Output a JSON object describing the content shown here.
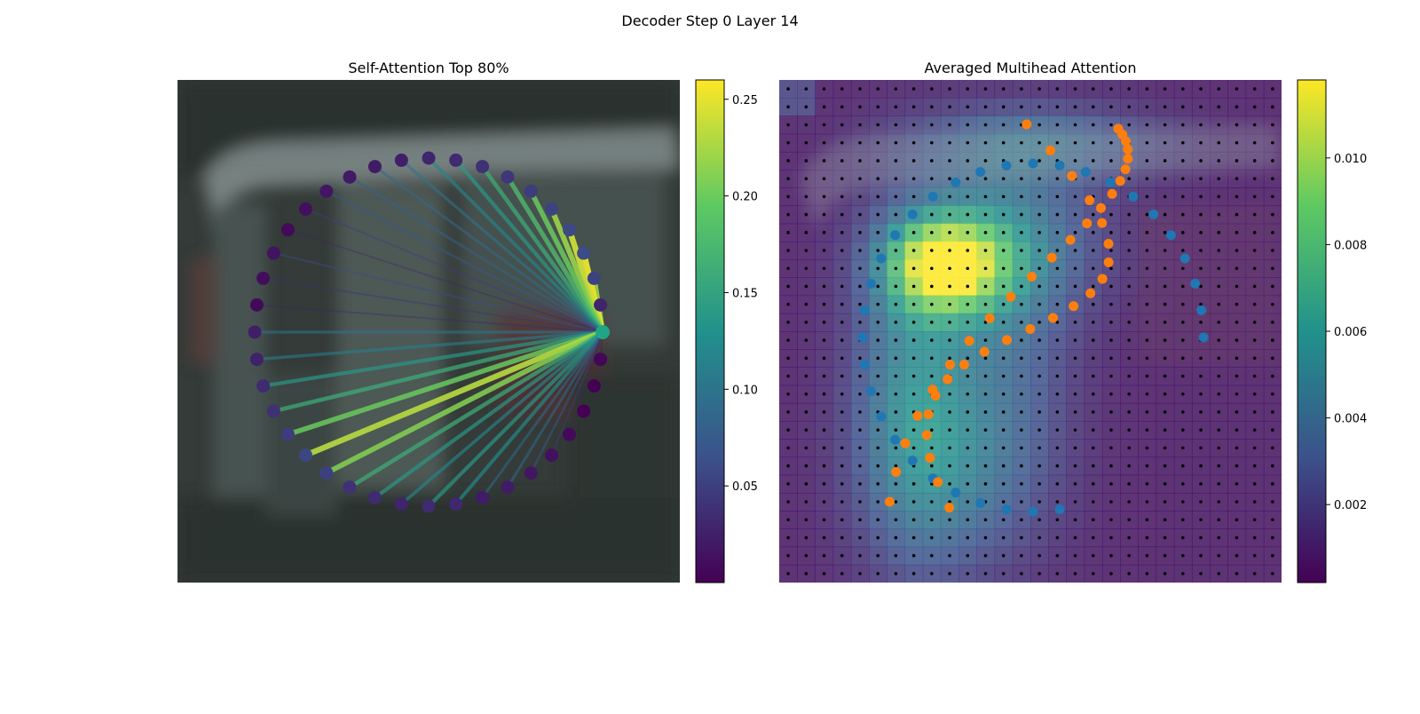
{
  "figure": {
    "suptitle": "Decoder Step 0 Layer 14"
  },
  "chart_data": [
    {
      "type": "network",
      "title": "Self-Attention Top 80%",
      "node_count": 40,
      "query_node": 0,
      "node_color": "#440154",
      "query_color": "#21a685",
      "edge_weights": [
        0,
        0.12,
        0.22,
        0.25,
        0.24,
        0.22,
        0.2,
        0.18,
        0.16,
        0.14,
        0.12,
        0.1,
        0.09,
        0.08,
        0.07,
        0.05,
        0.03,
        0.06,
        0.04,
        0.03,
        0.1,
        0.11,
        0.14,
        0.16,
        0.2,
        0.23,
        0.21,
        0.16,
        0.14,
        0.12,
        0.14,
        0.13,
        0.09,
        0.09,
        0.07,
        0.05,
        0.03,
        0,
        0,
        0.02
      ],
      "colorbar": {
        "colormap": "viridis",
        "min": 0.0,
        "max": 0.26,
        "ticks": [
          "0.05",
          "0.10",
          "0.15",
          "0.20",
          "0.25"
        ]
      }
    },
    {
      "type": "heatmap_scatter",
      "title": "Averaged Multihead Attention",
      "grid_size": 28,
      "hotspots": [
        {
          "cx": 9.3,
          "cy": 10.3,
          "sx": 2.2,
          "sy": 1.8,
          "v": 0.0095
        },
        {
          "cx": 7.5,
          "cy": 17.0,
          "sx": 2.4,
          "sy": 6.5,
          "v": 0.004
        },
        {
          "cx": 12.5,
          "cy": 9.0,
          "sx": 4.0,
          "sy": 3.0,
          "v": 0.003
        },
        {
          "cx": 14.5,
          "cy": 3.5,
          "sx": 5.0,
          "sy": 1.5,
          "v": 0.003
        },
        {
          "cx": 10.0,
          "cy": 22.0,
          "sx": 3.5,
          "sy": 4.0,
          "v": 0.0025
        },
        {
          "cx": 13.0,
          "cy": 14.0,
          "sx": 2.5,
          "sy": 6.0,
          "v": 0.0022
        },
        {
          "cx": 1.0,
          "cy": 1.0,
          "sx": 0.6,
          "sy": 0.6,
          "v": 0.003
        }
      ],
      "series": [
        {
          "name": "",
          "color": "#1f77b4"
        },
        {
          "name": "",
          "color": "#ff7f0e"
        }
      ],
      "colorbar": {
        "colormap": "viridis",
        "min": 0.0002,
        "max": 0.0118,
        "ticks": [
          "0.002",
          "0.004",
          "0.006",
          "0.008",
          "0.010"
        ]
      }
    }
  ]
}
